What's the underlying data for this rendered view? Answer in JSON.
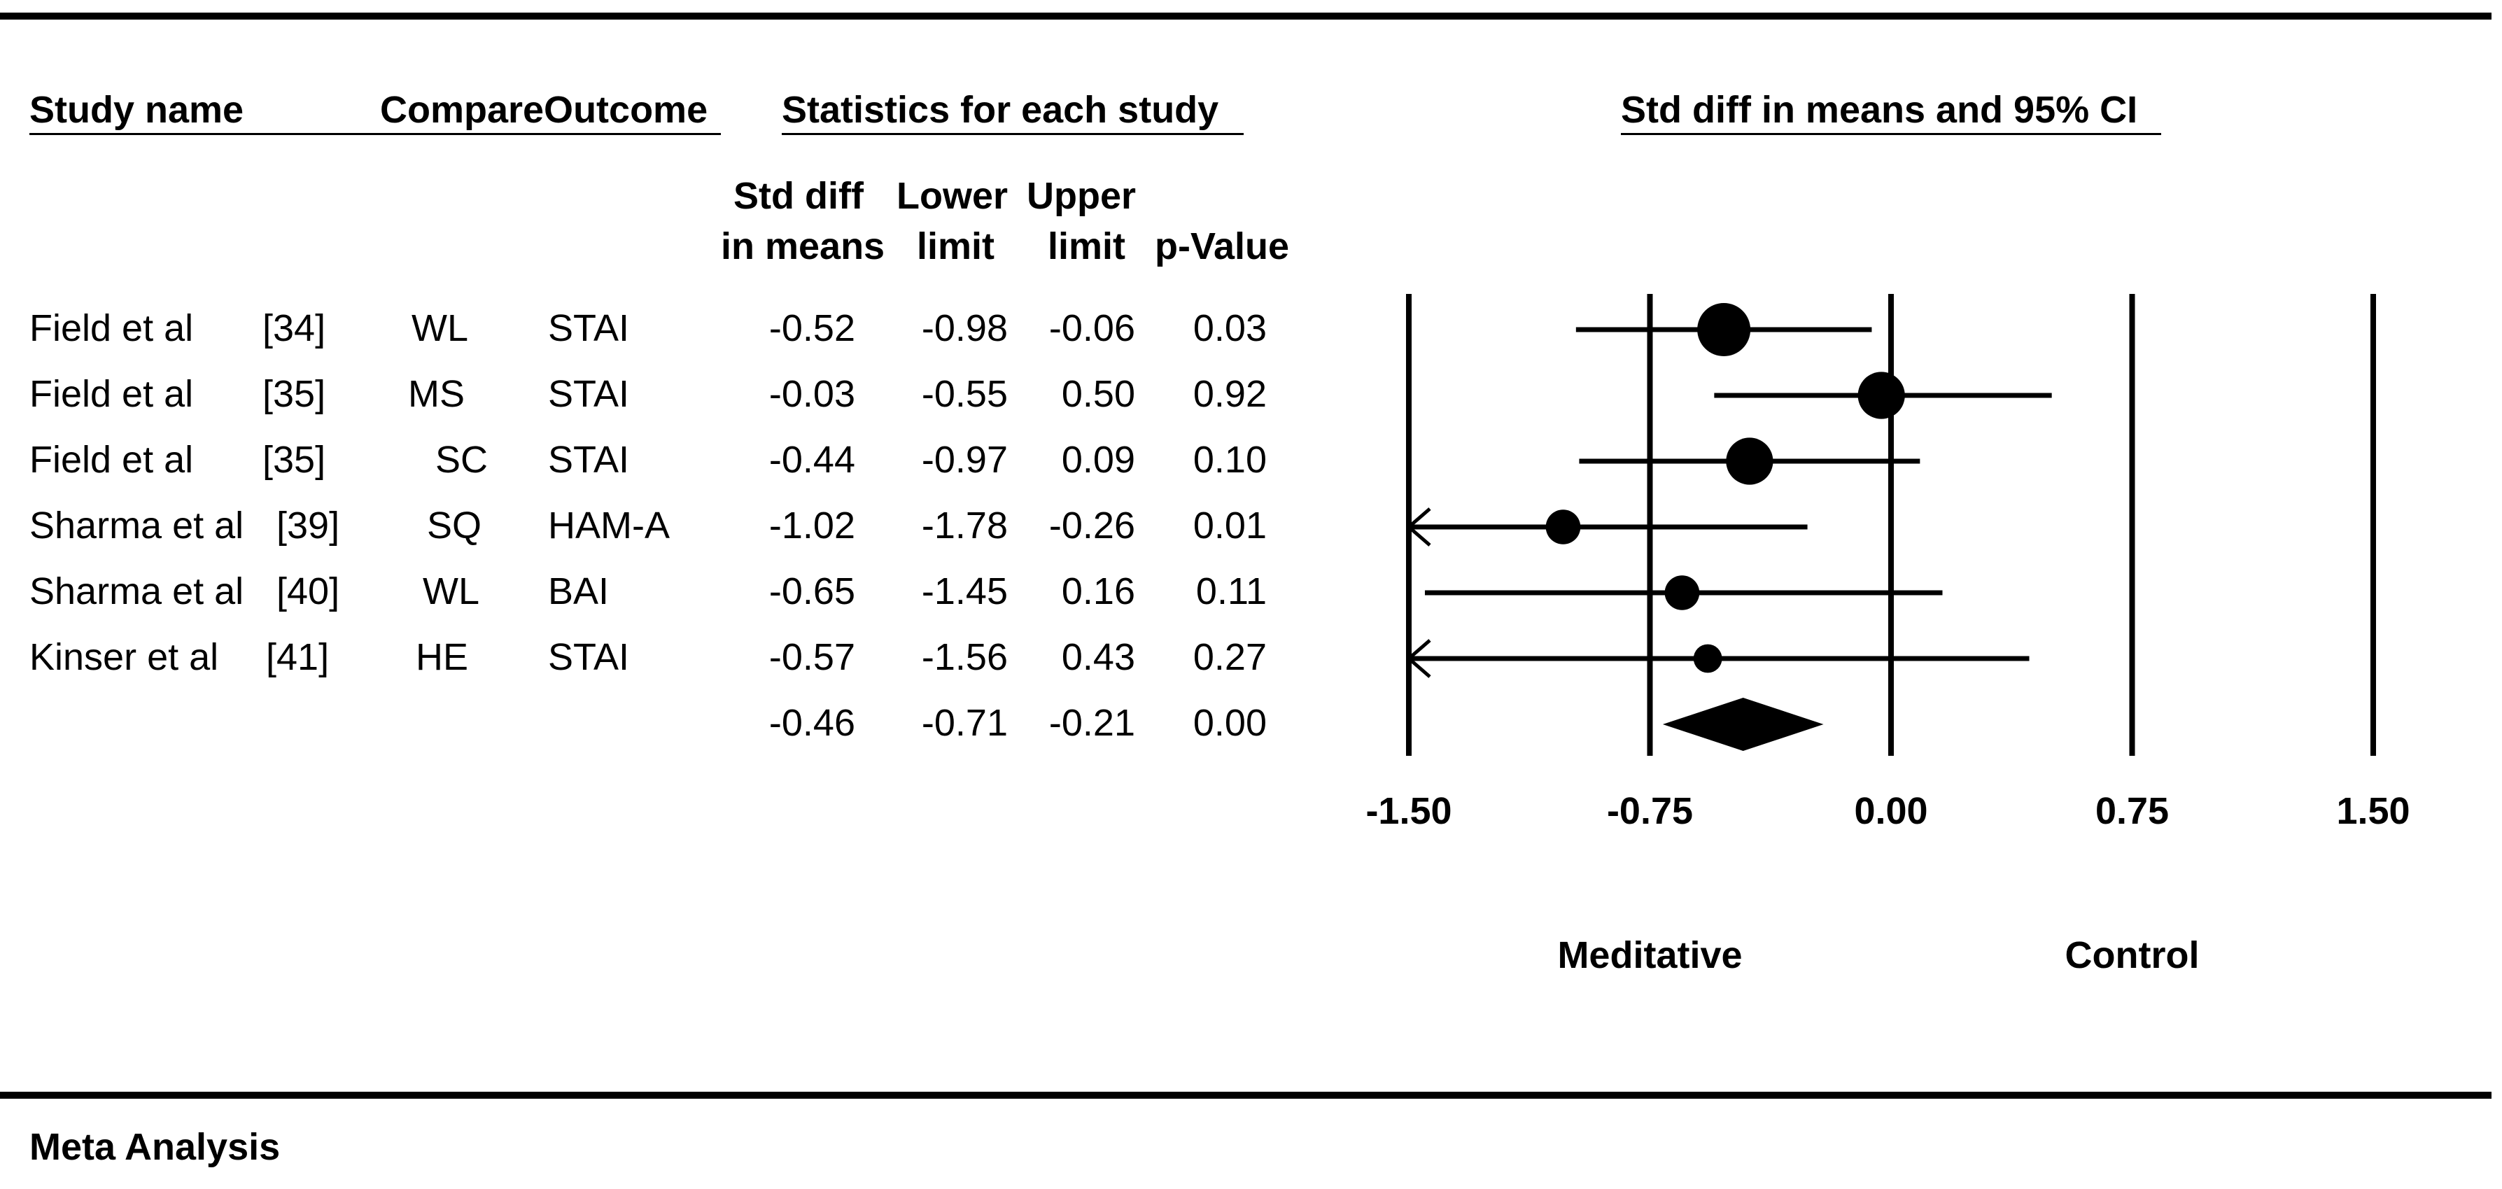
{
  "headers": {
    "study_name": "Study name",
    "compare_outcome": "CompareOutcome",
    "statistics": "Statistics for each study",
    "plot_title": "Std diff in means and 95% CI",
    "std_diff_line1": "Std diff",
    "std_diff_line2": "in means",
    "lower_line1": "Lower",
    "lower_line2": "limit",
    "upper_line1": "Upper",
    "upper_line2": "limit",
    "pvalue": "p-Value"
  },
  "rows": [
    {
      "study": "Field et al",
      "ref": "[34]",
      "compare": "WL",
      "outcome": "STAI",
      "smd": "-0.52",
      "lower": "-0.98",
      "upper": "-0.06",
      "p": "0.03"
    },
    {
      "study": "Field et al",
      "ref": "[35]",
      "compare": "MS",
      "outcome": "STAI",
      "smd": "-0.03",
      "lower": "-0.55",
      "upper": "0.50",
      "p": "0.92"
    },
    {
      "study": "Field et al",
      "ref": "[35]",
      "compare": "SC",
      "outcome": "STAI",
      "smd": "-0.44",
      "lower": "-0.97",
      "upper": "0.09",
      "p": "0.10"
    },
    {
      "study": "Sharma et al",
      "ref": "[39]",
      "compare": "SQ",
      "outcome": "HAM-A",
      "smd": "-1.02",
      "lower": "-1.78",
      "upper": "-0.26",
      "p": "0.01"
    },
    {
      "study": "Sharma et al",
      "ref": "[40]",
      "compare": "WL",
      "outcome": "BAI",
      "smd": "-0.65",
      "lower": "-1.45",
      "upper": "0.16",
      "p": "0.11"
    },
    {
      "study": "Kinser et al",
      "ref": "[41]",
      "compare": "HE",
      "outcome": "STAI",
      "smd": "-0.57",
      "lower": "-1.56",
      "upper": "0.43",
      "p": "0.27"
    }
  ],
  "summary": {
    "smd": "-0.46",
    "lower": "-0.71",
    "upper": "-0.21",
    "p": "0.00"
  },
  "footer": "Meta Analysis",
  "chart_data": {
    "type": "forest",
    "title": "Std diff in means and 95% CI",
    "x_ticks": [
      -1.5,
      -0.75,
      0,
      0.75,
      1.5
    ],
    "x_tick_labels": [
      "-1.50",
      "-0.75",
      "0.00",
      "0.75",
      "1.50"
    ],
    "xlim": [
      -1.5,
      1.5
    ],
    "favours_left": "Meditative",
    "favours_right": "Control",
    "studies": [
      {
        "label": "Field et al [34]",
        "estimate": -0.52,
        "lower": -0.98,
        "upper": -0.06,
        "weight": 5
      },
      {
        "label": "Field et al [35] MS",
        "estimate": -0.03,
        "lower": -0.55,
        "upper": 0.5,
        "weight": 4
      },
      {
        "label": "Field et al [35] SC",
        "estimate": -0.44,
        "lower": -0.97,
        "upper": 0.09,
        "weight": 4
      },
      {
        "label": "Sharma et al [39]",
        "estimate": -1.02,
        "lower": -1.78,
        "upper": -0.26,
        "weight": 2
      },
      {
        "label": "Sharma et al [40]",
        "estimate": -0.65,
        "lower": -1.45,
        "upper": 0.16,
        "weight": 2
      },
      {
        "label": "Kinser et al [41]",
        "estimate": -0.57,
        "lower": -1.56,
        "upper": 0.43,
        "weight": 1
      }
    ],
    "summary": {
      "estimate": -0.46,
      "lower": -0.71,
      "upper": -0.21
    }
  }
}
